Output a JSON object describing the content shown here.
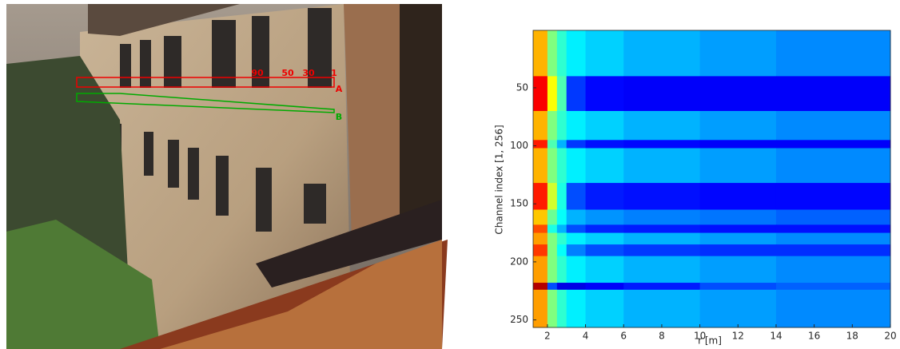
{
  "photo_labels": [
    "90",
    "50",
    "30",
    "1",
    "A",
    "B"
  ],
  "chart_data": {
    "type": "heatmap",
    "xlabel": "r [m]",
    "ylabel": "Channel index [1, 256]",
    "x_bins": [
      1.25,
      2,
      2.5,
      3,
      4,
      6,
      10,
      14,
      20
    ],
    "y_bins": [
      0.5,
      40,
      70,
      95,
      102,
      132,
      155,
      168,
      175,
      185,
      195,
      218,
      224,
      256.5
    ],
    "z": [
      [
        0.7,
        0.5,
        0.42,
        0.36,
        0.33,
        0.3,
        0.28,
        0.26
      ],
      [
        0.88,
        0.62,
        0.45,
        0.18,
        0.13,
        0.12,
        0.12,
        0.12
      ],
      [
        0.7,
        0.5,
        0.42,
        0.36,
        0.33,
        0.3,
        0.28,
        0.26
      ],
      [
        0.85,
        0.45,
        0.3,
        0.18,
        0.14,
        0.13,
        0.12,
        0.12
      ],
      [
        0.7,
        0.5,
        0.42,
        0.36,
        0.33,
        0.3,
        0.28,
        0.26
      ],
      [
        0.85,
        0.58,
        0.4,
        0.2,
        0.15,
        0.14,
        0.13,
        0.13
      ],
      [
        0.68,
        0.48,
        0.38,
        0.3,
        0.27,
        0.25,
        0.24,
        0.22
      ],
      [
        0.8,
        0.4,
        0.3,
        0.2,
        0.16,
        0.15,
        0.14,
        0.14
      ],
      [
        0.72,
        0.5,
        0.42,
        0.36,
        0.33,
        0.3,
        0.28,
        0.26
      ],
      [
        0.82,
        0.5,
        0.38,
        0.25,
        0.2,
        0.18,
        0.17,
        0.17
      ],
      [
        0.72,
        0.5,
        0.42,
        0.36,
        0.33,
        0.3,
        0.28,
        0.26
      ],
      [
        0.95,
        0.2,
        0.1,
        0.1,
        0.12,
        0.15,
        0.2,
        0.22
      ],
      [
        0.72,
        0.5,
        0.42,
        0.36,
        0.33,
        0.3,
        0.28,
        0.26
      ]
    ],
    "xlim": [
      1.25,
      20
    ],
    "ylim": [
      0.5,
      256.5
    ],
    "xticks": [
      2,
      4,
      6,
      8,
      10,
      12,
      14,
      16,
      18,
      20
    ],
    "yticks": [
      50,
      100,
      150,
      200,
      250
    ],
    "colormap": "jet",
    "y_reversed": true
  }
}
